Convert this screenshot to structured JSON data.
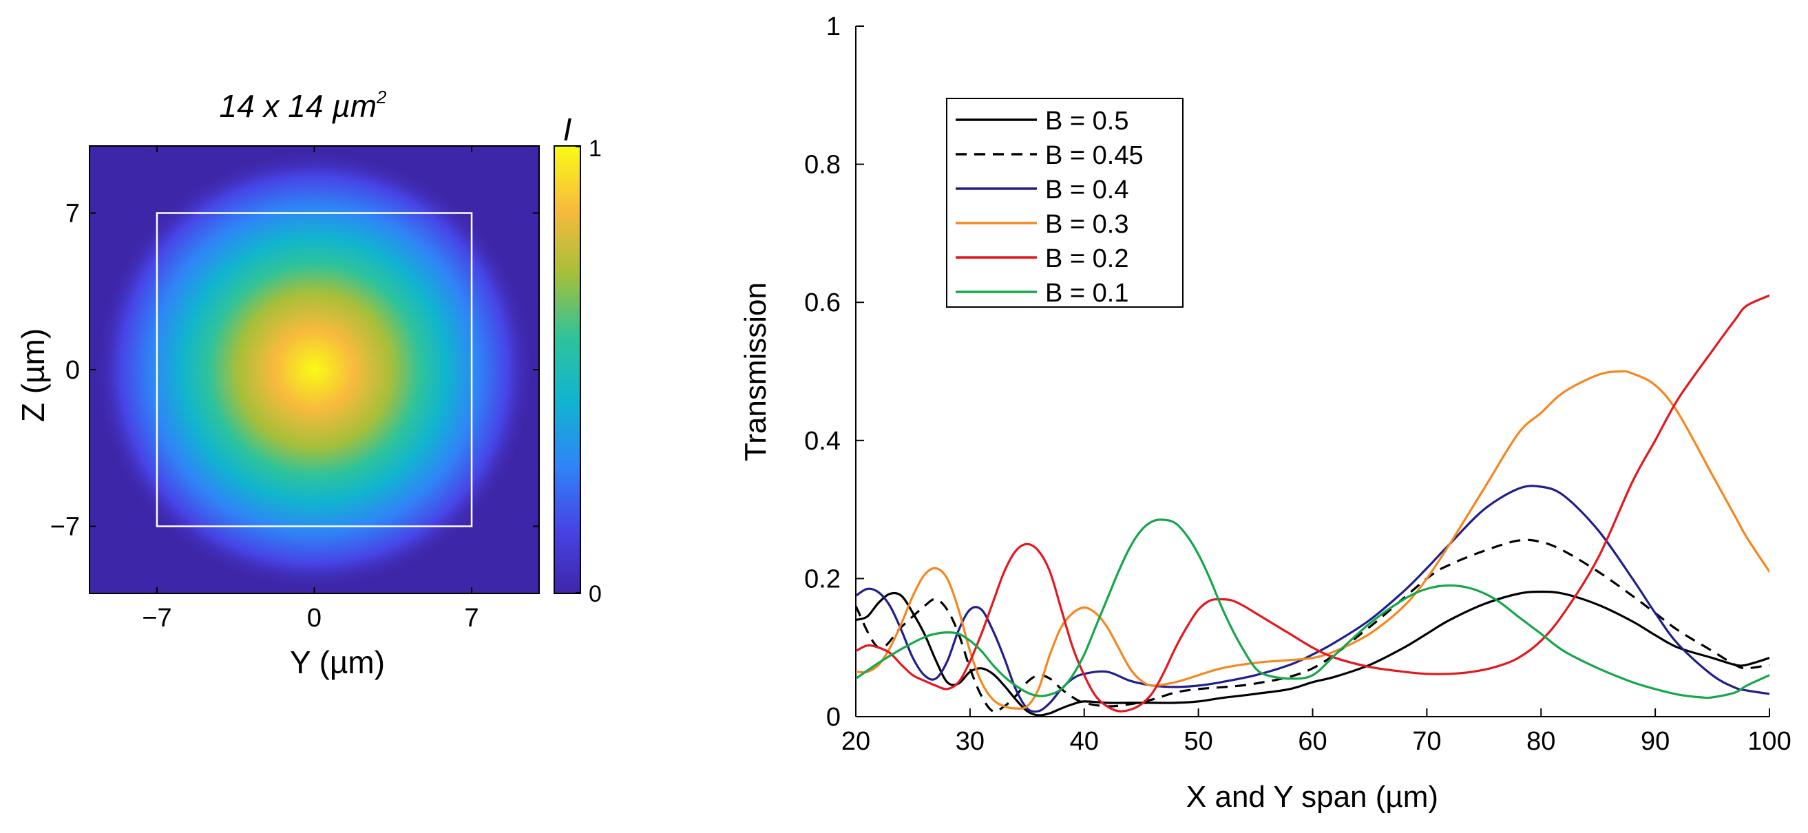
{
  "chart_data": [
    {
      "type": "heatmap",
      "title": "14 x 14 µm²",
      "title_base": "14 x 14 µm",
      "title_sup": "2",
      "xlabel": "Y (µm)",
      "ylabel": "Z (µm)",
      "xlim": [
        -10,
        10
      ],
      "ylim": [
        -10,
        10
      ],
      "x_ticks": [
        -7,
        0,
        7
      ],
      "y_ticks": [
        -7,
        0,
        7
      ],
      "x_tick_labels": [
        "−7",
        "0",
        "7"
      ],
      "y_tick_labels": [
        "−7",
        "0",
        "7"
      ],
      "waveguide_box": [
        -7,
        -7,
        7,
        7
      ],
      "beam_center": [
        0,
        0
      ],
      "beam_peak": 1,
      "colorbar": {
        "label": "I",
        "min": 0,
        "max": 1,
        "tick_labels": [
          "0",
          "1"
        ],
        "colormap": [
          "#3e26a8",
          "#4744e6",
          "#2f85f7",
          "#11b4cf",
          "#2ec39b",
          "#a6bf3a",
          "#f8ba3d",
          "#f9fb15"
        ]
      }
    },
    {
      "type": "line",
      "xlabel": "X and Y span (µm)",
      "ylabel": "Transmission",
      "xlim": [
        20,
        100
      ],
      "ylim": [
        0,
        1
      ],
      "x_ticks": [
        20,
        30,
        40,
        50,
        60,
        70,
        80,
        90,
        100
      ],
      "y_ticks": [
        0,
        0.2,
        0.4,
        0.6,
        0.8,
        1
      ],
      "x_tick_labels": [
        "20",
        "30",
        "40",
        "50",
        "60",
        "70",
        "80",
        "90",
        "100"
      ],
      "y_tick_labels": [
        "0",
        "0.2",
        "0.4",
        "0.6",
        "0.8",
        "1"
      ],
      "legend_position": "top-left",
      "series": [
        {
          "name": "B = 0.5",
          "color": "#000000",
          "dash": "solid",
          "x": [
            20,
            21,
            22,
            23,
            24,
            25,
            26,
            27,
            28,
            29,
            30,
            31,
            32,
            33,
            34,
            35,
            36,
            37,
            38,
            39,
            40,
            42,
            44,
            46,
            48,
            50,
            52,
            55,
            58,
            60,
            62,
            65,
            68,
            70,
            72,
            75,
            78,
            80,
            82,
            85,
            88,
            90,
            92,
            95,
            97,
            98,
            100
          ],
          "y": [
            0.14,
            0.145,
            0.165,
            0.178,
            0.175,
            0.15,
            0.12,
            0.082,
            0.05,
            0.048,
            0.065,
            0.07,
            0.062,
            0.045,
            0.025,
            0.008,
            0.002,
            0.005,
            0.012,
            0.018,
            0.022,
            0.02,
            0.02,
            0.02,
            0.02,
            0.022,
            0.027,
            0.033,
            0.04,
            0.05,
            0.058,
            0.075,
            0.1,
            0.12,
            0.14,
            0.163,
            0.178,
            0.181,
            0.178,
            0.162,
            0.138,
            0.118,
            0.1,
            0.085,
            0.075,
            0.075,
            0.085
          ]
        },
        {
          "name": "B = 0.45",
          "color": "#000000",
          "dash": "dashed",
          "x": [
            20,
            22,
            24,
            26,
            27,
            28,
            29,
            30,
            31,
            32,
            33,
            34,
            35,
            36,
            37,
            38,
            39,
            40,
            42,
            44,
            46,
            48,
            50,
            55,
            60,
            65,
            70,
            72,
            75,
            78,
            80,
            82,
            85,
            88,
            90,
            92,
            95,
            97,
            98,
            100
          ],
          "y": [
            0.16,
            0.1,
            0.13,
            0.16,
            0.17,
            0.155,
            0.12,
            0.07,
            0.03,
            0.008,
            0.015,
            0.03,
            0.05,
            0.06,
            0.055,
            0.04,
            0.028,
            0.02,
            0.015,
            0.018,
            0.025,
            0.035,
            0.04,
            0.048,
            0.07,
            0.13,
            0.2,
            0.22,
            0.24,
            0.255,
            0.253,
            0.24,
            0.21,
            0.175,
            0.15,
            0.125,
            0.095,
            0.075,
            0.07,
            0.075
          ]
        },
        {
          "name": "B = 0.4",
          "color": "#1f1f8c",
          "dash": "solid",
          "x": [
            20,
            21,
            22,
            23,
            24,
            25,
            26,
            27,
            28,
            29,
            30,
            31,
            32,
            33,
            34,
            35,
            36,
            37,
            38,
            39,
            40,
            42,
            44,
            46,
            48,
            50,
            52,
            55,
            58,
            60,
            62,
            65,
            68,
            70,
            72,
            75,
            78,
            80,
            82,
            85,
            88,
            90,
            92,
            95,
            97,
            98,
            100
          ],
          "y": [
            0.175,
            0.185,
            0.18,
            0.16,
            0.125,
            0.085,
            0.06,
            0.055,
            0.08,
            0.125,
            0.155,
            0.155,
            0.125,
            0.085,
            0.04,
            0.012,
            0.008,
            0.02,
            0.04,
            0.055,
            0.062,
            0.065,
            0.052,
            0.045,
            0.043,
            0.045,
            0.05,
            0.06,
            0.075,
            0.09,
            0.108,
            0.14,
            0.182,
            0.215,
            0.25,
            0.3,
            0.33,
            0.333,
            0.32,
            0.27,
            0.2,
            0.15,
            0.105,
            0.06,
            0.042,
            0.038,
            0.033
          ]
        },
        {
          "name": "B = 0.3",
          "color": "#f7861e",
          "dash": "solid",
          "x": [
            20,
            21,
            22,
            23,
            24,
            25,
            26,
            27,
            28,
            29,
            30,
            31,
            32,
            33,
            34,
            35,
            36,
            37,
            38,
            39,
            40,
            41,
            42,
            43,
            44,
            45,
            46,
            48,
            50,
            52,
            55,
            58,
            60,
            62,
            65,
            68,
            70,
            72,
            75,
            78,
            80,
            82,
            85,
            87,
            88,
            90,
            92,
            95,
            97,
            98,
            100
          ],
          "y": [
            0.065,
            0.065,
            0.075,
            0.1,
            0.135,
            0.175,
            0.205,
            0.215,
            0.2,
            0.155,
            0.095,
            0.05,
            0.025,
            0.015,
            0.012,
            0.015,
            0.04,
            0.09,
            0.13,
            0.15,
            0.158,
            0.15,
            0.13,
            0.1,
            0.07,
            0.052,
            0.045,
            0.05,
            0.06,
            0.07,
            0.078,
            0.082,
            0.085,
            0.095,
            0.12,
            0.16,
            0.2,
            0.25,
            0.33,
            0.41,
            0.44,
            0.47,
            0.495,
            0.5,
            0.497,
            0.48,
            0.44,
            0.35,
            0.29,
            0.26,
            0.21
          ]
        },
        {
          "name": "B = 0.2",
          "color": "#e4171e",
          "dash": "solid",
          "x": [
            20,
            21,
            22,
            23,
            24,
            25,
            26,
            27,
            28,
            29,
            30,
            31,
            32,
            33,
            34,
            35,
            36,
            37,
            38,
            39,
            40,
            41,
            42,
            43,
            44,
            45,
            46,
            47,
            48,
            49,
            50,
            51,
            52,
            53,
            54,
            55,
            56,
            58,
            60,
            62,
            65,
            68,
            70,
            72,
            74,
            76,
            78,
            80,
            82,
            85,
            88,
            90,
            92,
            95,
            97,
            98,
            100
          ],
          "y": [
            0.095,
            0.103,
            0.1,
            0.092,
            0.075,
            0.06,
            0.052,
            0.045,
            0.04,
            0.05,
            0.08,
            0.12,
            0.165,
            0.21,
            0.24,
            0.25,
            0.24,
            0.21,
            0.155,
            0.1,
            0.06,
            0.03,
            0.015,
            0.008,
            0.01,
            0.018,
            0.035,
            0.065,
            0.1,
            0.13,
            0.155,
            0.168,
            0.17,
            0.168,
            0.16,
            0.15,
            0.14,
            0.12,
            0.1,
            0.085,
            0.072,
            0.065,
            0.062,
            0.062,
            0.065,
            0.072,
            0.085,
            0.11,
            0.15,
            0.23,
            0.34,
            0.4,
            0.46,
            0.53,
            0.575,
            0.595,
            0.61
          ]
        },
        {
          "name": "B = 0.1",
          "color": "#14a64a",
          "dash": "solid",
          "x": [
            20,
            22,
            24,
            26,
            27,
            28,
            29,
            30,
            31,
            32,
            33,
            34,
            35,
            36,
            37,
            38,
            39,
            40,
            41,
            42,
            43,
            44,
            45,
            46,
            47,
            48,
            49,
            50,
            51,
            52,
            53,
            54,
            55,
            56,
            58,
            60,
            62,
            65,
            68,
            70,
            72,
            74,
            76,
            78,
            80,
            82,
            85,
            88,
            90,
            92,
            94,
            95,
            97,
            98,
            100
          ],
          "y": [
            0.055,
            0.078,
            0.098,
            0.115,
            0.12,
            0.122,
            0.12,
            0.11,
            0.095,
            0.075,
            0.058,
            0.045,
            0.035,
            0.03,
            0.032,
            0.04,
            0.06,
            0.09,
            0.13,
            0.17,
            0.21,
            0.245,
            0.27,
            0.283,
            0.285,
            0.28,
            0.262,
            0.235,
            0.2,
            0.16,
            0.125,
            0.095,
            0.07,
            0.06,
            0.055,
            0.06,
            0.09,
            0.135,
            0.17,
            0.185,
            0.19,
            0.185,
            0.17,
            0.145,
            0.12,
            0.095,
            0.07,
            0.05,
            0.04,
            0.032,
            0.028,
            0.028,
            0.035,
            0.045,
            0.06
          ]
        }
      ]
    }
  ]
}
